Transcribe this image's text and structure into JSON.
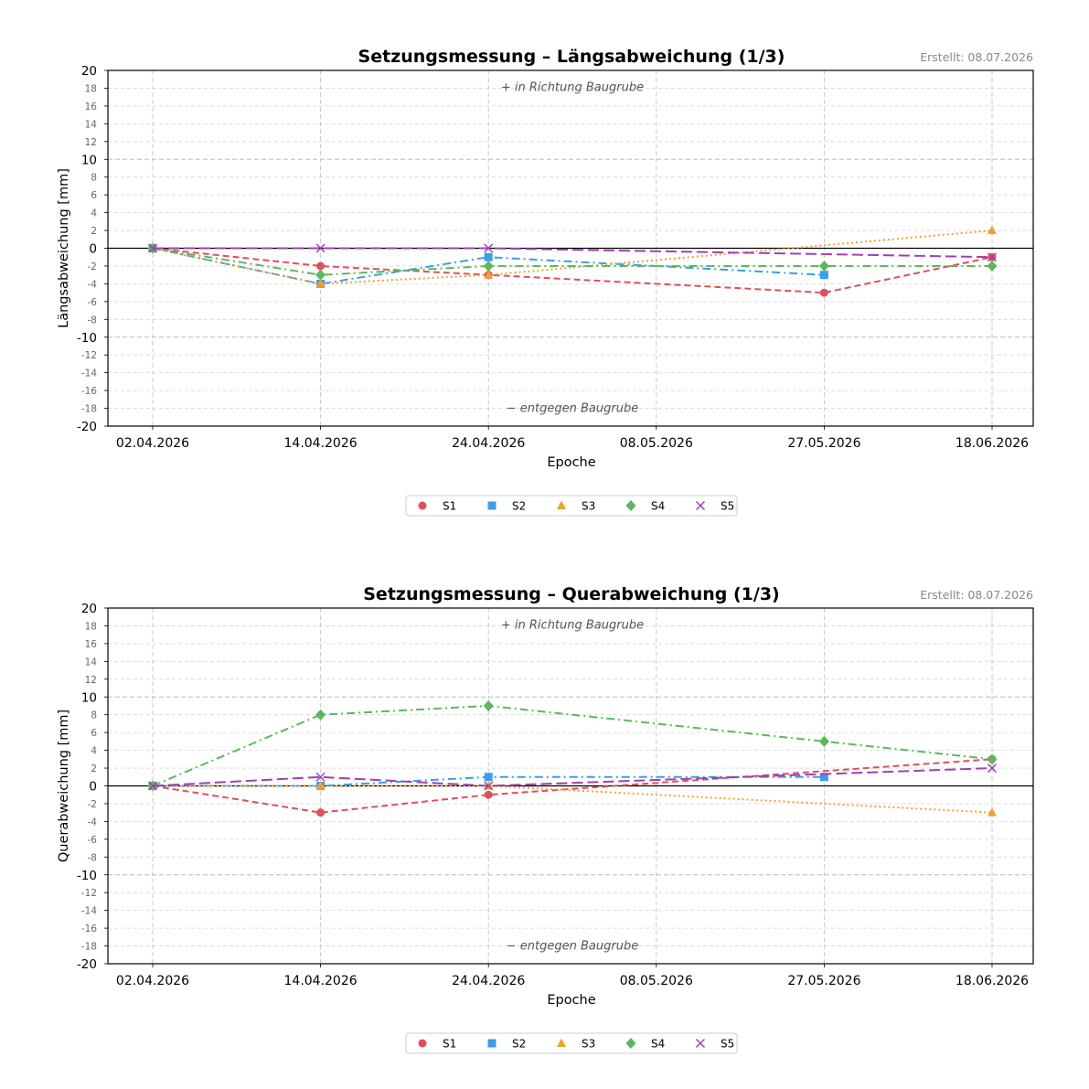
{
  "chart_data": [
    {
      "type": "line",
      "title": "Setzungsmessung – Längsabweichung (1/3)",
      "created": "Erstellt: 08.07.2026",
      "xlabel": "Epoche",
      "ylabel": "Längsabweichung [mm]",
      "ylim": [
        -20,
        20
      ],
      "categories": [
        "02.04.2026",
        "14.04.2026",
        "24.04.2026",
        "08.05.2026",
        "27.05.2026",
        "18.06.2026"
      ],
      "annotation_top": "+ in Richtung Baugrube",
      "annotation_bottom": "− entgegen Baugrube",
      "grid": true,
      "legend_position": "below",
      "series": [
        {
          "name": "S1",
          "color": "#e0505a",
          "marker": "circle",
          "dash": "dashed",
          "points": [
            [
              "02.04.2026",
              0
            ],
            [
              "14.04.2026",
              -2
            ],
            [
              "24.04.2026",
              -3
            ],
            [
              "27.05.2026",
              -5
            ],
            [
              "18.06.2026",
              -1
            ]
          ]
        },
        {
          "name": "S2",
          "color": "#3b9ee8",
          "marker": "square",
          "dash": "dashdot",
          "points": [
            [
              "02.04.2026",
              0
            ],
            [
              "14.04.2026",
              -4
            ],
            [
              "24.04.2026",
              -1
            ],
            [
              "27.05.2026",
              -3
            ]
          ]
        },
        {
          "name": "S3",
          "color": "#f0a030",
          "marker": "triangle",
          "dash": "dotted",
          "points": [
            [
              "02.04.2026",
              0
            ],
            [
              "14.04.2026",
              -4
            ],
            [
              "24.04.2026",
              -3
            ],
            [
              "18.06.2026",
              2
            ]
          ]
        },
        {
          "name": "S4",
          "color": "#5cb85c",
          "marker": "diamond",
          "dash": "dashdot",
          "points": [
            [
              "02.04.2026",
              0
            ],
            [
              "14.04.2026",
              -3
            ],
            [
              "24.04.2026",
              -2
            ],
            [
              "27.05.2026",
              -2
            ],
            [
              "18.06.2026",
              -2
            ]
          ]
        },
        {
          "name": "S5",
          "color": "#a040b0",
          "marker": "x",
          "dash": "longdash",
          "points": [
            [
              "02.04.2026",
              0
            ],
            [
              "14.04.2026",
              0
            ],
            [
              "24.04.2026",
              0
            ],
            [
              "18.06.2026",
              -1
            ]
          ]
        }
      ]
    },
    {
      "type": "line",
      "title": "Setzungsmessung – Querabweichung (1/3)",
      "created": "Erstellt: 08.07.2026",
      "xlabel": "Epoche",
      "ylabel": "Querabweichung [mm]",
      "ylim": [
        -20,
        20
      ],
      "categories": [
        "02.04.2026",
        "14.04.2026",
        "24.04.2026",
        "08.05.2026",
        "27.05.2026",
        "18.06.2026"
      ],
      "annotation_top": "+ in Richtung Baugrube",
      "annotation_bottom": "− entgegen Baugrube",
      "grid": true,
      "legend_position": "below",
      "series": [
        {
          "name": "S1",
          "color": "#e0505a",
          "marker": "circle",
          "dash": "dashed",
          "points": [
            [
              "02.04.2026",
              0
            ],
            [
              "14.04.2026",
              -3
            ],
            [
              "24.04.2026",
              -1
            ],
            [
              "18.06.2026",
              3
            ]
          ]
        },
        {
          "name": "S2",
          "color": "#3b9ee8",
          "marker": "square",
          "dash": "dashdot",
          "points": [
            [
              "02.04.2026",
              0
            ],
            [
              "14.04.2026",
              0
            ],
            [
              "24.04.2026",
              1
            ],
            [
              "27.05.2026",
              1
            ]
          ]
        },
        {
          "name": "S3",
          "color": "#f0a030",
          "marker": "triangle",
          "dash": "dotted",
          "points": [
            [
              "02.04.2026",
              0
            ],
            [
              "14.04.2026",
              0
            ],
            [
              "24.04.2026",
              0
            ],
            [
              "18.06.2026",
              -3
            ]
          ]
        },
        {
          "name": "S4",
          "color": "#5cb85c",
          "marker": "diamond",
          "dash": "dashdot",
          "points": [
            [
              "02.04.2026",
              0
            ],
            [
              "14.04.2026",
              8
            ],
            [
              "24.04.2026",
              9
            ],
            [
              "27.05.2026",
              5
            ],
            [
              "18.06.2026",
              3
            ]
          ]
        },
        {
          "name": "S5",
          "color": "#a040b0",
          "marker": "x",
          "dash": "longdash",
          "points": [
            [
              "02.04.2026",
              0
            ],
            [
              "14.04.2026",
              1
            ],
            [
              "24.04.2026",
              0
            ],
            [
              "18.06.2026",
              2
            ]
          ]
        }
      ]
    }
  ]
}
